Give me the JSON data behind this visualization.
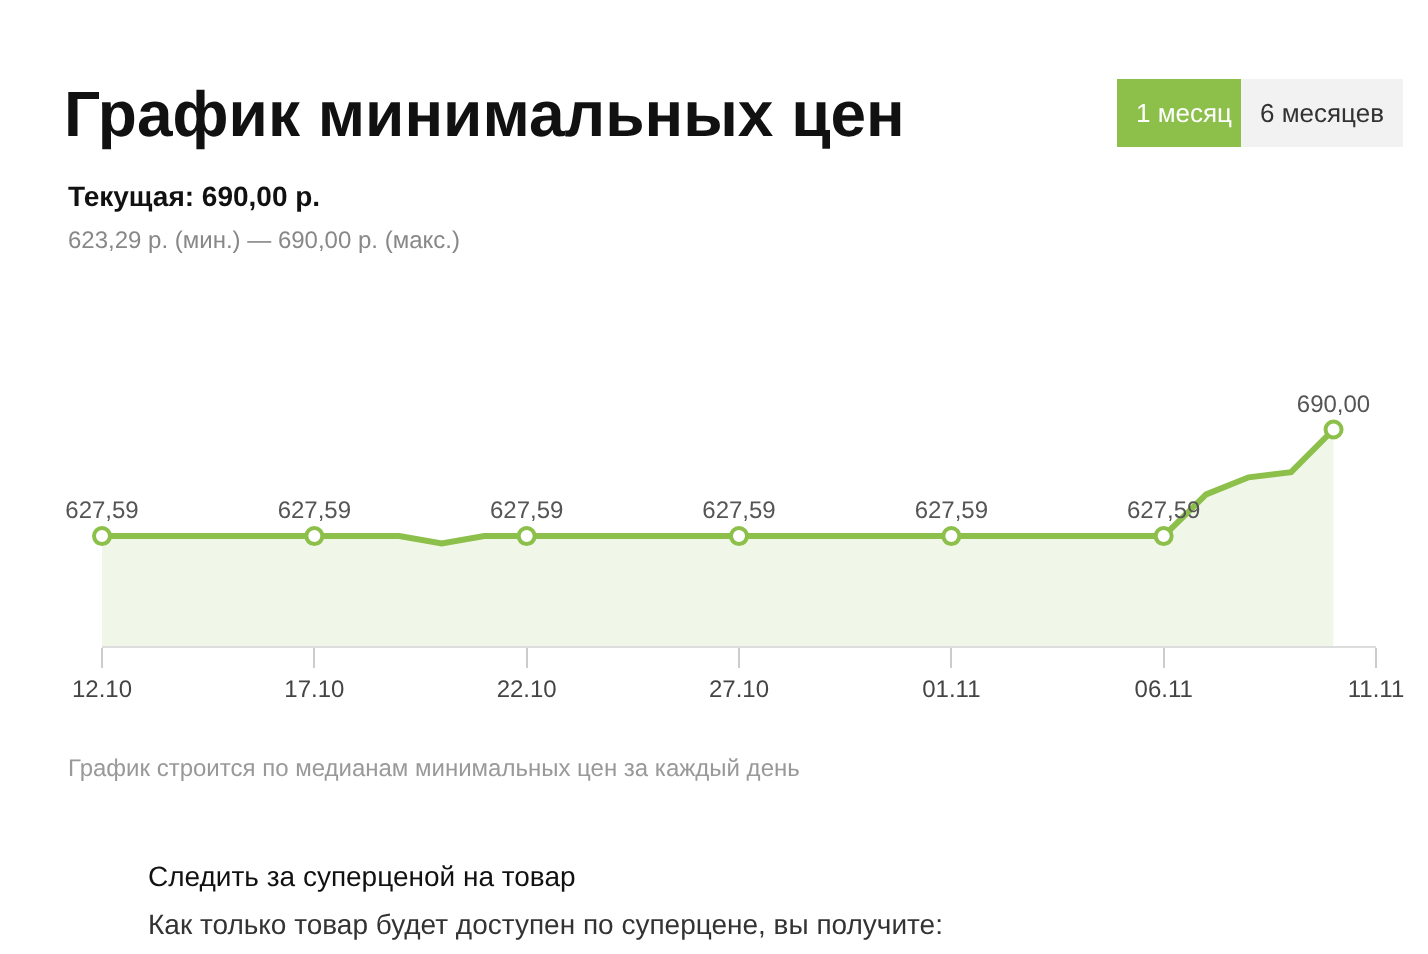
{
  "chart_data": {
    "type": "area",
    "title": "График минимальных цен",
    "subtitle": "Текущая: 690,00 р.",
    "annotations": [
      "623,29 р. (мин.) — 690,00 р. (макс.)",
      "1 месяц",
      "6 месяцев",
      "График строится по медианам минимальных цен за каждый день",
      "Следить за суперценой на товар",
      "Как только товар будет доступен по суперцене, вы получите:"
    ],
    "x": [
      "--10-12",
      "--10-13",
      "--10-14",
      "--10-15",
      "--10-16",
      "--10-17",
      "--10-18",
      "--10-19",
      "--10-20",
      "--10-21",
      "--10-22",
      "--10-23",
      "--10-24",
      "--10-25",
      "--10-26",
      "--10-27",
      "--10-28",
      "--10-29",
      "--10-30",
      "--10-31",
      "--11-01",
      "--11-02",
      "--11-03",
      "--11-04",
      "--11-05",
      "--11-06",
      "--11-07",
      "--11-08",
      "--11-09",
      "--11-10"
    ],
    "series": [
      {
        "color": "#8cc04b",
        "values": [
          627.59,
          627.59,
          627.59,
          627.59,
          627.59,
          627.59,
          627.59,
          627.59,
          623.29,
          627.59,
          627.59,
          627.59,
          627.59,
          627.59,
          627.59,
          627.59,
          627.59,
          627.59,
          627.59,
          627.59,
          627.59,
          627.59,
          627.59,
          627.59,
          627.59,
          627.59,
          652,
          662,
          665,
          690
        ],
        "value_labels": [
          "627,59",
          null,
          null,
          null,
          null,
          "627,59",
          null,
          null,
          null,
          null,
          "627,59",
          null,
          null,
          null,
          null,
          "627,59",
          null,
          null,
          null,
          null,
          "627,59",
          null,
          null,
          null,
          null,
          "627,59",
          null,
          null,
          null,
          "690,00"
        ]
      }
    ],
    "xlim": [
      "--10-12",
      "--11-11"
    ],
    "xticks": [
      {
        "value": "--10-12",
        "label": "12.10"
      },
      {
        "value": "--10-17",
        "label": "17.10"
      },
      {
        "value": "--10-22",
        "label": "22.10"
      },
      {
        "value": "--10-27",
        "label": "27.10"
      },
      {
        "value": "--11-01",
        "label": "01.11"
      },
      {
        "value": "--11-06",
        "label": "06.11"
      },
      {
        "value": "--11-11",
        "label": "11.11"
      }
    ],
    "tick_labels": "x",
    "legend": false
  }
}
